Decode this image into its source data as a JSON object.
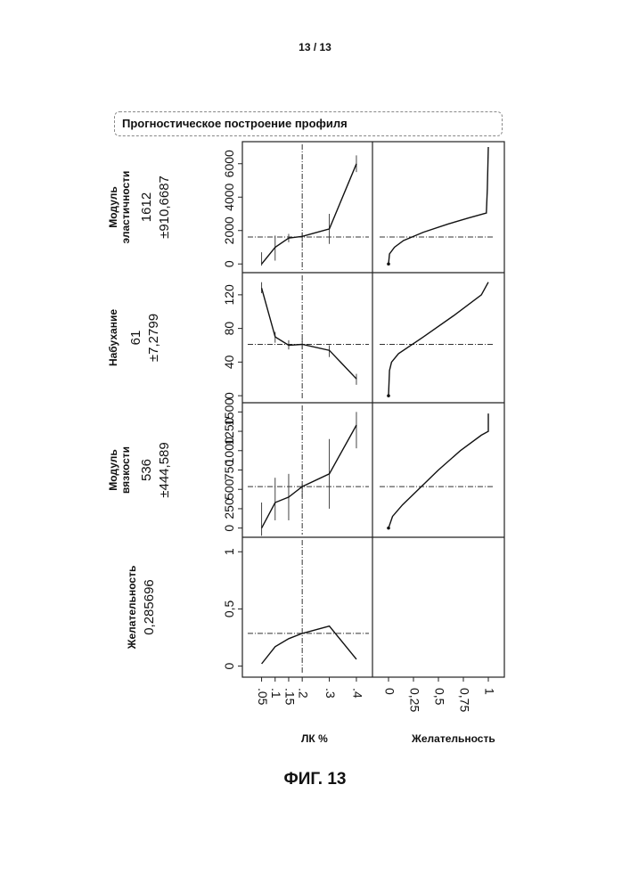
{
  "page_number": "13 / 13",
  "panel_title": "Прогностическое построение профиля",
  "figure_label": "ФИГ. 13",
  "x_axis_titles": {
    "factor": "ЛК %",
    "desirability": "Желательность"
  },
  "chart_data": {
    "type": "line",
    "x_factor": {
      "label": "ЛК %",
      "ticks": [
        0.05,
        0.1,
        0.15,
        0.2,
        0.3,
        0.4
      ],
      "tick_labels": [
        ".05",
        ".1",
        ".15",
        ".2",
        ".3",
        ".4"
      ],
      "current": 0.2
    },
    "x_desirability": {
      "label": "Желательность",
      "ticks": [
        0,
        0.25,
        0.5,
        0.75,
        1
      ],
      "tick_labels": [
        "0",
        "0,25",
        "0,5",
        "0,75",
        "1"
      ]
    },
    "rows": [
      {
        "name_lines": [
          "Модуль",
          "эластичности"
        ],
        "value": "1612",
        "interval": "±910,6687",
        "ylim": [
          -200,
          7000
        ],
        "yticks": [
          0,
          2000,
          4000,
          6000
        ],
        "ytick_labels": [
          "0",
          "2000",
          "4000",
          "6000"
        ],
        "current": 1612,
        "x": [
          0.05,
          0.1,
          0.15,
          0.2,
          0.3,
          0.4
        ],
        "y": [
          0,
          1000,
          1550,
          1650,
          2100,
          6000
        ],
        "err_low": [
          -100,
          200,
          1300,
          1350,
          1200,
          5500
        ],
        "err_high": [
          700,
          1700,
          1800,
          1900,
          3000,
          6500
        ],
        "desirability_curve": {
          "y": [
            0,
            600,
            1000,
            1400,
            1900,
            2400,
            2750,
            3050,
            4500,
            7000
          ],
          "d": [
            0,
            0.01,
            0.06,
            0.15,
            0.35,
            0.6,
            0.8,
            0.98,
            0.99,
            1.0
          ]
        }
      },
      {
        "name_lines": [
          "Набухание"
        ],
        "value": "61",
        "interval": "±7,2799",
        "ylim": [
          -2,
          140
        ],
        "yticks": [
          0,
          40,
          80,
          120
        ],
        "ytick_labels": [
          "0",
          "40",
          "80",
          "120"
        ],
        "current": 61,
        "x": [
          0.05,
          0.1,
          0.15,
          0.2,
          0.3,
          0.4
        ],
        "y": [
          128,
          70,
          60,
          61,
          54,
          20
        ],
        "err_low": [
          122,
          63,
          55,
          55,
          46,
          13
        ],
        "err_high": [
          135,
          76,
          66,
          68,
          60,
          26
        ],
        "desirability_curve": {
          "y": [
            0,
            30,
            40,
            50,
            70,
            95,
            120,
            135
          ],
          "d": [
            0,
            0.01,
            0.03,
            0.1,
            0.35,
            0.65,
            0.93,
            1.0
          ]
        }
      },
      {
        "name_lines": [
          "Модуль",
          "вязкости"
        ],
        "value": "536",
        "interval": "±444,589",
        "ylim": [
          -50,
          1550
        ],
        "yticks": [
          0,
          250,
          500,
          750,
          1000,
          1250,
          1500
        ],
        "ytick_labels": [
          "0",
          "250",
          "500",
          "750",
          "1000",
          "1250",
          "1500"
        ],
        "current": 536,
        "x": [
          0.05,
          0.1,
          0.15,
          0.2,
          0.3,
          0.4
        ],
        "y": [
          0,
          330,
          400,
          536,
          700,
          1330
        ],
        "err_low": [
          -100,
          100,
          100,
          400,
          250,
          1030
        ],
        "err_high": [
          330,
          650,
          700,
          600,
          1150,
          1500
        ],
        "desirability_curve": {
          "y": [
            0,
            150,
            300,
            500,
            750,
            1000,
            1200,
            1250,
            1480
          ],
          "d": [
            0,
            0.04,
            0.14,
            0.3,
            0.5,
            0.72,
            0.93,
            1.0,
            1.0
          ]
        }
      },
      {
        "name_lines": [
          "Желательность"
        ],
        "value": "0,285696",
        "interval": "",
        "ylim": [
          -0.05,
          1.08
        ],
        "yticks": [
          0,
          0.5,
          1
        ],
        "ytick_labels": [
          "0",
          "0,5",
          "1"
        ],
        "current": 0.285696,
        "x": [
          0.05,
          0.1,
          0.15,
          0.2,
          0.3,
          0.4
        ],
        "y": [
          0.02,
          0.17,
          0.24,
          0.285696,
          0.35,
          0.06
        ],
        "err_low": [],
        "err_high": [],
        "desirability_curve": null
      }
    ]
  }
}
